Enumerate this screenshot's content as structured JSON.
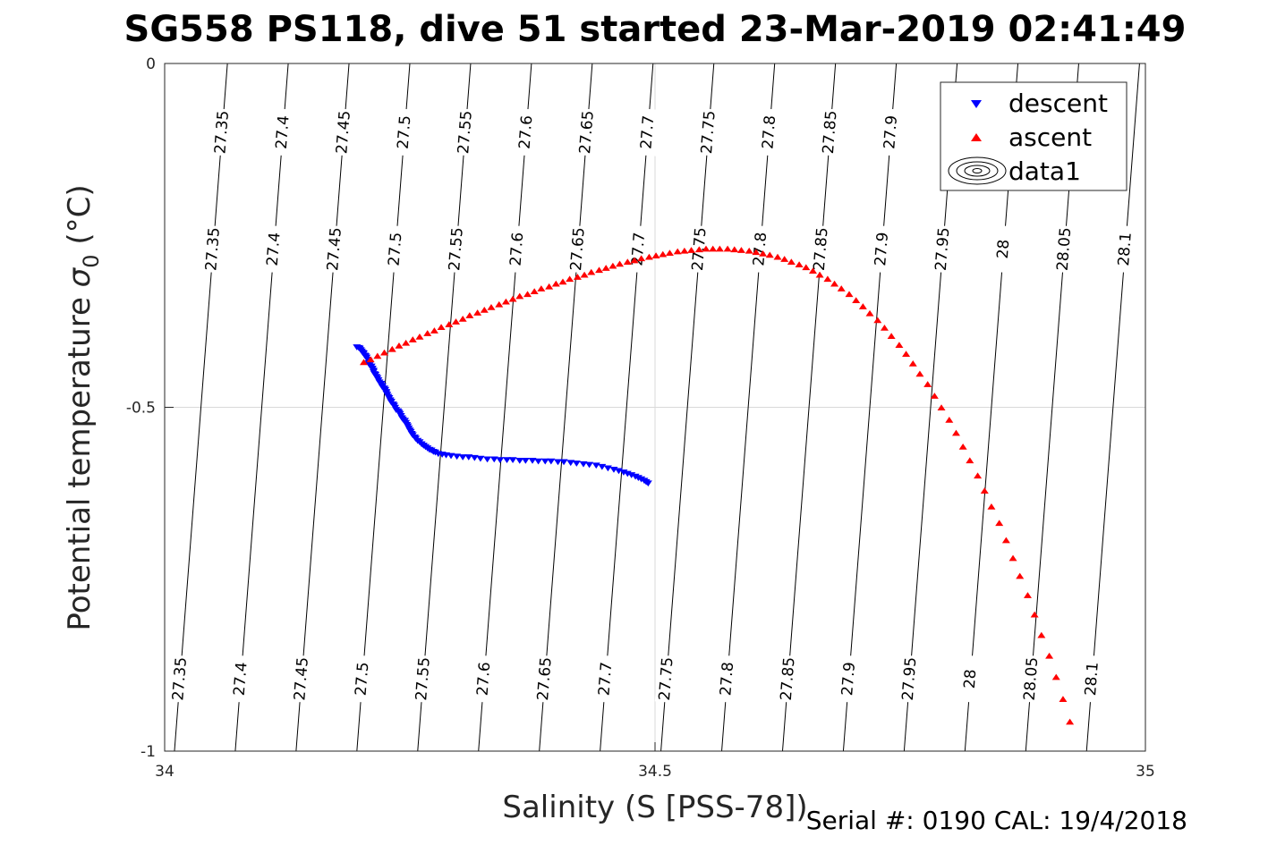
{
  "chart_data": {
    "type": "scatter",
    "title": "SG558 PS118, dive 51 started 23-Mar-2019 02:41:49",
    "xlabel": "Salinity (S [PSS-78])",
    "ylabel_main": "Potential temperature ",
    "ylabel_sigma": "σ",
    "ylabel_sub": "0",
    "ylabel_unit": " (°C)",
    "xlim": [
      34,
      35
    ],
    "ylim": [
      -1,
      0
    ],
    "xticks": [
      34,
      34.5,
      35
    ],
    "xtick_labels": [
      "34",
      "34.5",
      "35"
    ],
    "yticks": [
      0,
      -0.5,
      -1
    ],
    "ytick_labels": [
      "0",
      "-0.5",
      "-1"
    ],
    "grid": true,
    "legend_position": "top-right",
    "legend": [
      "descent",
      "ascent",
      "data1"
    ],
    "colors": {
      "descent": "#0000ff",
      "ascent": "#ff0000",
      "contour": "#000000",
      "grid": "#d9d9d9"
    },
    "contours": [
      {
        "level": 27.35,
        "label": "27.35",
        "s_top": 34.064,
        "s_bottom": 34.01
      },
      {
        "level": 27.4,
        "label": "27.4",
        "s_top": 34.126,
        "s_bottom": 34.072
      },
      {
        "level": 27.45,
        "label": "27.45",
        "s_top": 34.188,
        "s_bottom": 34.134
      },
      {
        "level": 27.5,
        "label": "27.5",
        "s_top": 34.25,
        "s_bottom": 34.196
      },
      {
        "level": 27.55,
        "label": "27.55",
        "s_top": 34.312,
        "s_bottom": 34.258
      },
      {
        "level": 27.6,
        "label": "27.6",
        "s_top": 34.374,
        "s_bottom": 34.32
      },
      {
        "level": 27.65,
        "label": "27.65",
        "s_top": 34.436,
        "s_bottom": 34.382
      },
      {
        "level": 27.7,
        "label": "27.7",
        "s_top": 34.498,
        "s_bottom": 34.444
      },
      {
        "level": 27.75,
        "label": "27.75",
        "s_top": 34.56,
        "s_bottom": 34.506
      },
      {
        "level": 27.8,
        "label": "27.8",
        "s_top": 34.622,
        "s_bottom": 34.568
      },
      {
        "level": 27.85,
        "label": "27.85",
        "s_top": 34.684,
        "s_bottom": 34.63
      },
      {
        "level": 27.9,
        "label": "27.9",
        "s_top": 34.746,
        "s_bottom": 34.692
      },
      {
        "level": 27.95,
        "label": "27.95",
        "s_top": 34.808,
        "s_bottom": 34.754
      },
      {
        "level": 28,
        "label": "28",
        "s_top": 34.87,
        "s_bottom": 34.816
      },
      {
        "level": 28.05,
        "label": "28.05",
        "s_top": 34.932,
        "s_bottom": 34.878
      },
      {
        "level": 28.1,
        "label": "28.1",
        "s_top": 34.994,
        "s_bottom": 34.94
      },
      {
        "level": 28.15,
        "label": "",
        "s_top": 35.056,
        "s_bottom": 35.002
      }
    ],
    "contour_label_rows": [
      {
        "t": -0.27,
        "hide": []
      },
      {
        "t": -0.1,
        "hide": [
          27.95,
          28.0,
          28.05,
          28.1
        ]
      },
      {
        "t": -0.895,
        "hide": []
      }
    ],
    "series": [
      {
        "name": "descent",
        "marker": "triangle-down",
        "points": [
          [
            34.196,
            -0.412
          ],
          [
            34.198,
            -0.413
          ],
          [
            34.199,
            -0.414
          ],
          [
            34.2,
            -0.416
          ],
          [
            34.201,
            -0.418
          ],
          [
            34.202,
            -0.42
          ],
          [
            34.203,
            -0.421
          ],
          [
            34.204,
            -0.424
          ],
          [
            34.205,
            -0.425
          ],
          [
            34.206,
            -0.427
          ],
          [
            34.207,
            -0.43
          ],
          [
            34.208,
            -0.432
          ],
          [
            34.208,
            -0.435
          ],
          [
            34.209,
            -0.438
          ],
          [
            34.211,
            -0.44
          ],
          [
            34.212,
            -0.443
          ],
          [
            34.213,
            -0.446
          ],
          [
            34.213,
            -0.448
          ],
          [
            34.214,
            -0.451
          ],
          [
            34.215,
            -0.452
          ],
          [
            34.216,
            -0.455
          ],
          [
            34.217,
            -0.457
          ],
          [
            34.218,
            -0.46
          ],
          [
            34.219,
            -0.463
          ],
          [
            34.221,
            -0.465
          ],
          [
            34.222,
            -0.468
          ],
          [
            34.222,
            -0.47
          ],
          [
            34.224,
            -0.472
          ],
          [
            34.225,
            -0.474
          ],
          [
            34.226,
            -0.477
          ],
          [
            34.226,
            -0.479
          ],
          [
            34.227,
            -0.481
          ],
          [
            34.228,
            -0.484
          ],
          [
            34.229,
            -0.486
          ],
          [
            34.23,
            -0.489
          ],
          [
            34.231,
            -0.491
          ],
          [
            34.231,
            -0.492
          ],
          [
            34.233,
            -0.495
          ],
          [
            34.234,
            -0.497
          ],
          [
            34.235,
            -0.5
          ],
          [
            34.236,
            -0.503
          ],
          [
            34.238,
            -0.505
          ],
          [
            34.239,
            -0.507
          ],
          [
            34.24,
            -0.509
          ],
          [
            34.241,
            -0.512
          ],
          [
            34.242,
            -0.515
          ],
          [
            34.243,
            -0.517
          ],
          [
            34.245,
            -0.519
          ],
          [
            34.246,
            -0.522
          ],
          [
            34.247,
            -0.525
          ],
          [
            34.248,
            -0.527
          ],
          [
            34.249,
            -0.53
          ],
          [
            34.25,
            -0.533
          ],
          [
            34.251,
            -0.535
          ],
          [
            34.252,
            -0.538
          ],
          [
            34.253,
            -0.54
          ],
          [
            34.255,
            -0.543
          ],
          [
            34.256,
            -0.545
          ],
          [
            34.258,
            -0.548
          ],
          [
            34.26,
            -0.55
          ],
          [
            34.262,
            -0.553
          ],
          [
            34.264,
            -0.555
          ],
          [
            34.266,
            -0.557
          ],
          [
            34.268,
            -0.559
          ],
          [
            34.27,
            -0.561
          ],
          [
            34.272,
            -0.562
          ],
          [
            34.274,
            -0.564
          ],
          [
            34.276,
            -0.565
          ],
          [
            34.279,
            -0.567
          ],
          [
            34.283,
            -0.568
          ],
          [
            34.287,
            -0.569
          ],
          [
            34.292,
            -0.57
          ],
          [
            34.298,
            -0.571
          ],
          [
            34.304,
            -0.572
          ],
          [
            34.31,
            -0.572
          ],
          [
            34.316,
            -0.573
          ],
          [
            34.322,
            -0.574
          ],
          [
            34.329,
            -0.575
          ],
          [
            34.336,
            -0.575
          ],
          [
            34.342,
            -0.576
          ],
          [
            34.349,
            -0.576
          ],
          [
            34.355,
            -0.576
          ],
          [
            34.362,
            -0.577
          ],
          [
            34.368,
            -0.577
          ],
          [
            34.375,
            -0.577
          ],
          [
            34.381,
            -0.578
          ],
          [
            34.388,
            -0.578
          ],
          [
            34.394,
            -0.578
          ],
          [
            34.401,
            -0.579
          ],
          [
            34.407,
            -0.579
          ],
          [
            34.414,
            -0.58
          ],
          [
            34.42,
            -0.581
          ],
          [
            34.427,
            -0.582
          ],
          [
            34.433,
            -0.583
          ],
          [
            34.44,
            -0.584
          ],
          [
            34.446,
            -0.586
          ],
          [
            34.452,
            -0.588
          ],
          [
            34.458,
            -0.59
          ],
          [
            34.463,
            -0.592
          ],
          [
            34.468,
            -0.594
          ],
          [
            34.472,
            -0.596
          ],
          [
            34.476,
            -0.598
          ],
          [
            34.48,
            -0.6
          ],
          [
            34.483,
            -0.602
          ],
          [
            34.486,
            -0.604
          ],
          [
            34.489,
            -0.606
          ],
          [
            34.491,
            -0.608
          ],
          [
            34.493,
            -0.61
          ]
        ]
      },
      {
        "name": "ascent",
        "marker": "triangle-up",
        "points": [
          [
            34.203,
            -0.435
          ],
          [
            34.21,
            -0.431
          ],
          [
            34.217,
            -0.426
          ],
          [
            34.224,
            -0.421
          ],
          [
            34.232,
            -0.416
          ],
          [
            34.239,
            -0.411
          ],
          [
            34.246,
            -0.407
          ],
          [
            34.253,
            -0.402
          ],
          [
            34.26,
            -0.398
          ],
          [
            34.268,
            -0.393
          ],
          [
            34.275,
            -0.389
          ],
          [
            34.282,
            -0.384
          ],
          [
            34.29,
            -0.38
          ],
          [
            34.297,
            -0.376
          ],
          [
            34.304,
            -0.372
          ],
          [
            34.311,
            -0.367
          ],
          [
            34.319,
            -0.363
          ],
          [
            34.326,
            -0.359
          ],
          [
            34.333,
            -0.355
          ],
          [
            34.341,
            -0.351
          ],
          [
            34.348,
            -0.347
          ],
          [
            34.355,
            -0.343
          ],
          [
            34.362,
            -0.339
          ],
          [
            34.37,
            -0.336
          ],
          [
            34.377,
            -0.332
          ],
          [
            34.384,
            -0.328
          ],
          [
            34.392,
            -0.325
          ],
          [
            34.399,
            -0.321
          ],
          [
            34.406,
            -0.318
          ],
          [
            34.413,
            -0.314
          ],
          [
            34.421,
            -0.311
          ],
          [
            34.428,
            -0.308
          ],
          [
            34.435,
            -0.304
          ],
          [
            34.443,
            -0.301
          ],
          [
            34.45,
            -0.298
          ],
          [
            34.457,
            -0.295
          ],
          [
            34.464,
            -0.292
          ],
          [
            34.472,
            -0.289
          ],
          [
            34.479,
            -0.287
          ],
          [
            34.486,
            -0.284
          ],
          [
            34.494,
            -0.282
          ],
          [
            34.501,
            -0.28
          ],
          [
            34.508,
            -0.278
          ],
          [
            34.515,
            -0.276
          ],
          [
            34.523,
            -0.274
          ],
          [
            34.53,
            -0.273
          ],
          [
            34.537,
            -0.272
          ],
          [
            34.545,
            -0.271
          ],
          [
            34.552,
            -0.27
          ],
          [
            34.559,
            -0.27
          ],
          [
            34.566,
            -0.27
          ],
          [
            34.574,
            -0.27
          ],
          [
            34.581,
            -0.271
          ],
          [
            34.588,
            -0.272
          ],
          [
            34.596,
            -0.273
          ],
          [
            34.603,
            -0.275
          ],
          [
            34.61,
            -0.277
          ],
          [
            34.617,
            -0.279
          ],
          [
            34.625,
            -0.282
          ],
          [
            34.632,
            -0.285
          ],
          [
            34.639,
            -0.289
          ],
          [
            34.647,
            -0.293
          ],
          [
            34.654,
            -0.297
          ],
          [
            34.661,
            -0.302
          ],
          [
            34.668,
            -0.308
          ],
          [
            34.676,
            -0.314
          ],
          [
            34.683,
            -0.321
          ],
          [
            34.69,
            -0.328
          ],
          [
            34.698,
            -0.336
          ],
          [
            34.705,
            -0.345
          ],
          [
            34.712,
            -0.354
          ],
          [
            34.719,
            -0.364
          ],
          [
            34.727,
            -0.374
          ],
          [
            34.734,
            -0.385
          ],
          [
            34.741,
            -0.397
          ],
          [
            34.749,
            -0.41
          ],
          [
            34.756,
            -0.423
          ],
          [
            34.763,
            -0.437
          ],
          [
            34.77,
            -0.452
          ],
          [
            34.778,
            -0.467
          ],
          [
            34.785,
            -0.484
          ],
          [
            34.792,
            -0.501
          ],
          [
            34.8,
            -0.519
          ],
          [
            34.807,
            -0.538
          ],
          [
            34.814,
            -0.558
          ],
          [
            34.821,
            -0.578
          ],
          [
            34.829,
            -0.6
          ],
          [
            34.836,
            -0.622
          ],
          [
            34.843,
            -0.645
          ],
          [
            34.851,
            -0.669
          ],
          [
            34.858,
            -0.694
          ],
          [
            34.865,
            -0.72
          ],
          [
            34.872,
            -0.746
          ],
          [
            34.88,
            -0.774
          ],
          [
            34.887,
            -0.802
          ],
          [
            34.894,
            -0.832
          ],
          [
            34.902,
            -0.862
          ],
          [
            34.909,
            -0.893
          ],
          [
            34.916,
            -0.925
          ],
          [
            34.923,
            -0.958
          ]
        ]
      }
    ]
  },
  "footer": "Serial #: 0190  CAL: 19/4/2018"
}
